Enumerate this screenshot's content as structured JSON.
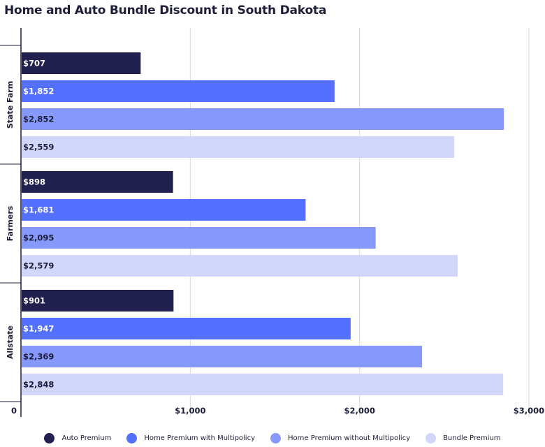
{
  "chart_data": {
    "type": "bar",
    "orientation": "horizontal",
    "title": "Home and Auto Bundle Discount in South Dakota",
    "categories": [
      "State Farm",
      "Farmers",
      "Allstate"
    ],
    "series": [
      {
        "name": "Auto Premium",
        "color": "#22204f",
        "values": [
          707,
          898,
          901
        ],
        "labels": [
          "$707",
          "$898",
          "$901"
        ]
      },
      {
        "name": "Home Premium with Multipolicy",
        "color": "#5470ff",
        "values": [
          1852,
          1681,
          1947
        ],
        "labels": [
          "$1,852",
          "$1,681",
          "$1,947"
        ]
      },
      {
        "name": "Home Premium without Multipolicy",
        "color": "#8798fb",
        "values": [
          2852,
          2095,
          2369
        ],
        "labels": [
          "$2,852",
          "$2,095",
          "$2,369"
        ]
      },
      {
        "name": "Bundle Premium",
        "color": "#d1d6fa",
        "values": [
          2559,
          2579,
          2848
        ],
        "labels": [
          "$2,559",
          "$2,579",
          "$2,848"
        ]
      }
    ],
    "x_ticks": [
      0,
      1000,
      2000,
      3000
    ],
    "x_tick_labels": [
      "0",
      "$1,000",
      "$2,000",
      "$3,000"
    ],
    "xlim": [
      0,
      3000
    ],
    "grid": true,
    "legend_position": "bottom"
  }
}
